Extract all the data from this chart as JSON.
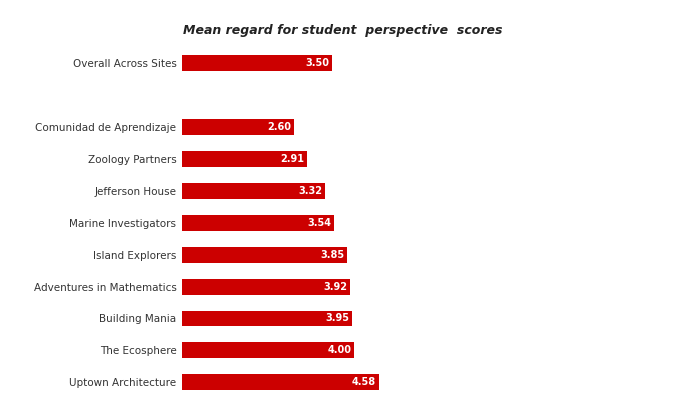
{
  "title": "Mean regard for student  perspective  scores",
  "categories": [
    "Uptown Architecture",
    "The Ecosphere",
    "Building Mania",
    "Adventures in Mathematics",
    "Island Explorers",
    "Marine Investigators",
    "Jefferson House",
    "Zoology Partners",
    "Comunidad de Aprendizaje",
    "",
    "Overall Across Sites"
  ],
  "values": [
    4.58,
    4.0,
    3.95,
    3.92,
    3.85,
    3.54,
    3.32,
    2.91,
    2.6,
    null,
    3.5
  ],
  "bar_color": "#cc0000",
  "label_color": "#ffffff",
  "background_color": "#ffffff",
  "xlim": [
    0,
    7.5
  ],
  "title_fontsize": 9,
  "tick_fontsize": 7.5,
  "value_label_fontsize": 7.0
}
